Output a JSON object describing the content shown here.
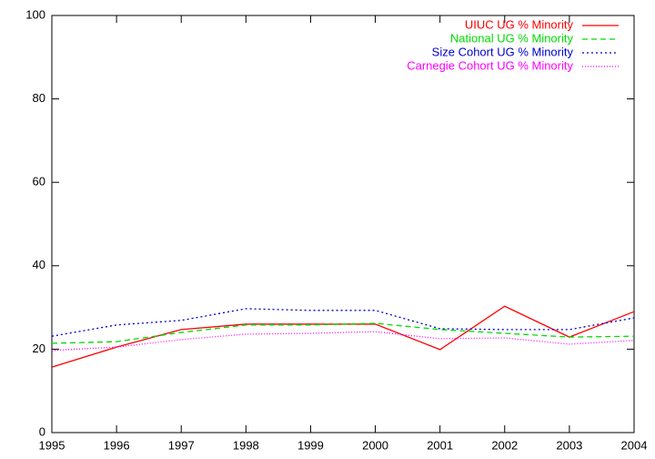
{
  "chart_data": {
    "type": "line",
    "x": [
      1995,
      1996,
      1997,
      1998,
      1999,
      2000,
      2001,
      2002,
      2003,
      2004
    ],
    "xlim": [
      1995,
      2004
    ],
    "xticks": [
      1995,
      1996,
      1997,
      1998,
      1999,
      2000,
      2001,
      2002,
      2003,
      2004
    ],
    "ylim": [
      0,
      100
    ],
    "yticks": [
      0,
      20,
      40,
      60,
      80,
      100
    ],
    "grid": false,
    "legend": "top right",
    "series": [
      {
        "name": "UIUC UG % Minority",
        "color": "#ff0000",
        "dash": "solid",
        "values": [
          15.7,
          20.5,
          24.7,
          26,
          26,
          26,
          19.9,
          30.3,
          22.9,
          29.0
        ]
      },
      {
        "name": "National UG % Minority",
        "color": "#00dd00",
        "dash": "dashed",
        "values": [
          21.4,
          21.8,
          24,
          25.8,
          25.8,
          26.2,
          24.7,
          23.8,
          22.9,
          23.1
        ]
      },
      {
        "name": "Size Cohort UG % Minority",
        "color": "#0000cc",
        "dash": "dotted",
        "values": [
          23.1,
          25.8,
          26.9,
          29.7,
          29.3,
          29.3,
          24.9,
          24.7,
          24.7,
          27.5
        ]
      },
      {
        "name": "Carnegie Cohort UG % Minority",
        "color": "#ff00ff",
        "dash": "finedotted",
        "values": [
          19.7,
          20.5,
          22.3,
          23.6,
          23.8,
          24.2,
          22.5,
          22.7,
          21.2,
          22.1
        ]
      }
    ]
  }
}
